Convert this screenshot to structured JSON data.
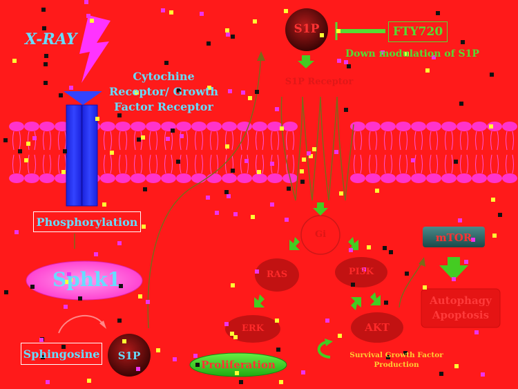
{
  "labels": {
    "xray": "X-RAY",
    "receptor": "Cytochine Receptor/ Growth Factor Receptor",
    "phosphorylation": "Phosphorylation",
    "sphk1": "Sphk1",
    "sphingosine": "Sphingosine",
    "s1p_bottom": "S1P",
    "s1p_top": "S1P",
    "fty720": "FTY720",
    "down_modulation": "Down modulation of S1P",
    "s1p_receptor": "S1P Receptor",
    "gi": "Gi",
    "ras": "RAS",
    "pi3k": "PI3K",
    "erk": "ERK",
    "akt": "AKT",
    "mtor": "mTOR",
    "autophagy": "Autophagy Apoptosis",
    "proliferation": "Proliferation",
    "survival": "Survival Growth Factor Production"
  },
  "colors": {
    "background": "#ff1a1a",
    "receptor_blue": "#2233ff",
    "membrane_pink": "#ff33cc",
    "label_blue": "#66ddff",
    "fty_green": "#55dd33",
    "node_dark": "#b31010",
    "arrow_green": "#44cc22"
  }
}
